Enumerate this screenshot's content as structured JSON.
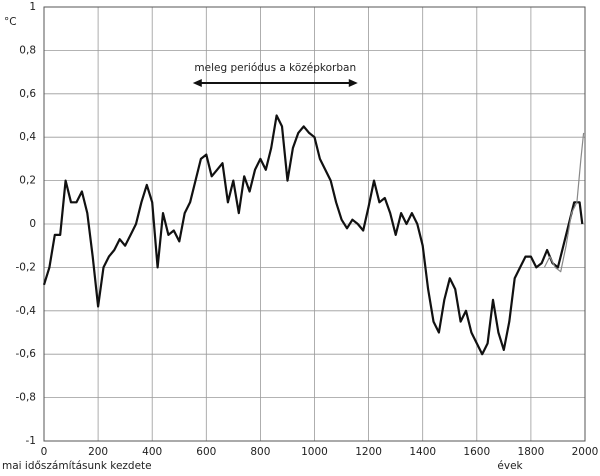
{
  "chart_data": {
    "type": "line",
    "y_label": "°C",
    "x_label": "évek",
    "x_origin_label": "mai időszámításunk kezdete",
    "annotation": {
      "text": "meleg periódus a középkorban",
      "x": [
        550,
        1160
      ],
      "y": 0.65
    },
    "xlim": [
      0,
      2000
    ],
    "xticks": [
      0,
      200,
      400,
      600,
      800,
      1000,
      1200,
      1400,
      1600,
      1800,
      2000
    ],
    "ylim": [
      -1,
      1
    ],
    "yticks": [
      -1,
      {
        "value": -0.8,
        "label": "-0,8"
      },
      {
        "value": -0.6,
        "label": "-0,6"
      },
      {
        "value": -0.4,
        "label": "-0,4"
      },
      {
        "value": -0.2,
        "label": "-0,2"
      },
      0,
      {
        "value": 0.2,
        "label": "0,2"
      },
      {
        "value": 0.4,
        "label": "0,4"
      },
      {
        "value": 0.6,
        "label": "0,6"
      },
      {
        "value": 0.8,
        "label": "0,8"
      },
      1
    ],
    "grid": true,
    "series": [
      {
        "color": "#111111",
        "width": 2.2,
        "x": [
          0,
          20,
          40,
          60,
          80,
          100,
          120,
          140,
          160,
          180,
          200,
          220,
          240,
          260,
          280,
          300,
          320,
          340,
          360,
          380,
          400,
          420,
          440,
          460,
          480,
          500,
          520,
          540,
          560,
          580,
          600,
          620,
          640,
          660,
          680,
          700,
          720,
          740,
          760,
          780,
          800,
          820,
          840,
          860,
          880,
          900,
          920,
          940,
          960,
          980,
          1000,
          1020,
          1040,
          1060,
          1080,
          1100,
          1120,
          1140,
          1160,
          1180,
          1200,
          1220,
          1240,
          1260,
          1280,
          1300,
          1320,
          1340,
          1360,
          1380,
          1400,
          1420,
          1440,
          1460,
          1480,
          1500,
          1520,
          1540,
          1560,
          1580,
          1600,
          1620,
          1640,
          1660,
          1680,
          1700,
          1720,
          1740,
          1760,
          1780,
          1800,
          1820,
          1840,
          1860,
          1880,
          1900,
          1920,
          1940,
          1960,
          1980,
          1990
        ],
        "values": [
          -0.28,
          -0.2,
          -0.05,
          -0.05,
          0.2,
          0.1,
          0.1,
          0.15,
          0.05,
          -0.15,
          -0.38,
          -0.2,
          -0.15,
          -0.12,
          -0.07,
          -0.1,
          -0.05,
          0.0,
          0.1,
          0.18,
          0.1,
          -0.2,
          0.05,
          -0.05,
          -0.03,
          -0.08,
          0.05,
          0.1,
          0.2,
          0.3,
          0.32,
          0.22,
          0.25,
          0.28,
          0.1,
          0.2,
          0.05,
          0.22,
          0.15,
          0.25,
          0.3,
          0.25,
          0.35,
          0.5,
          0.45,
          0.2,
          0.35,
          0.42,
          0.45,
          0.42,
          0.4,
          0.3,
          0.25,
          0.2,
          0.1,
          0.02,
          -0.02,
          0.02,
          0.0,
          -0.03,
          0.08,
          0.2,
          0.1,
          0.12,
          0.05,
          -0.05,
          0.05,
          0.0,
          0.05,
          0.0,
          -0.1,
          -0.3,
          -0.45,
          -0.5,
          -0.35,
          -0.25,
          -0.3,
          -0.45,
          -0.4,
          -0.5,
          -0.55,
          -0.6,
          -0.55,
          -0.35,
          -0.5,
          -0.58,
          -0.45,
          -0.25,
          -0.2,
          -0.15,
          -0.15,
          -0.2,
          -0.18,
          -0.12,
          -0.18,
          -0.2,
          -0.1,
          0.0,
          0.1,
          0.1,
          0.0
        ]
      },
      {
        "color": "#888888",
        "width": 1.2,
        "x": [
          1850,
          1870,
          1890,
          1910,
          1930,
          1950,
          1970,
          1985,
          1995
        ],
        "values": [
          -0.2,
          -0.15,
          -0.2,
          -0.22,
          -0.1,
          0.05,
          0.1,
          0.3,
          0.42
        ]
      }
    ]
  }
}
